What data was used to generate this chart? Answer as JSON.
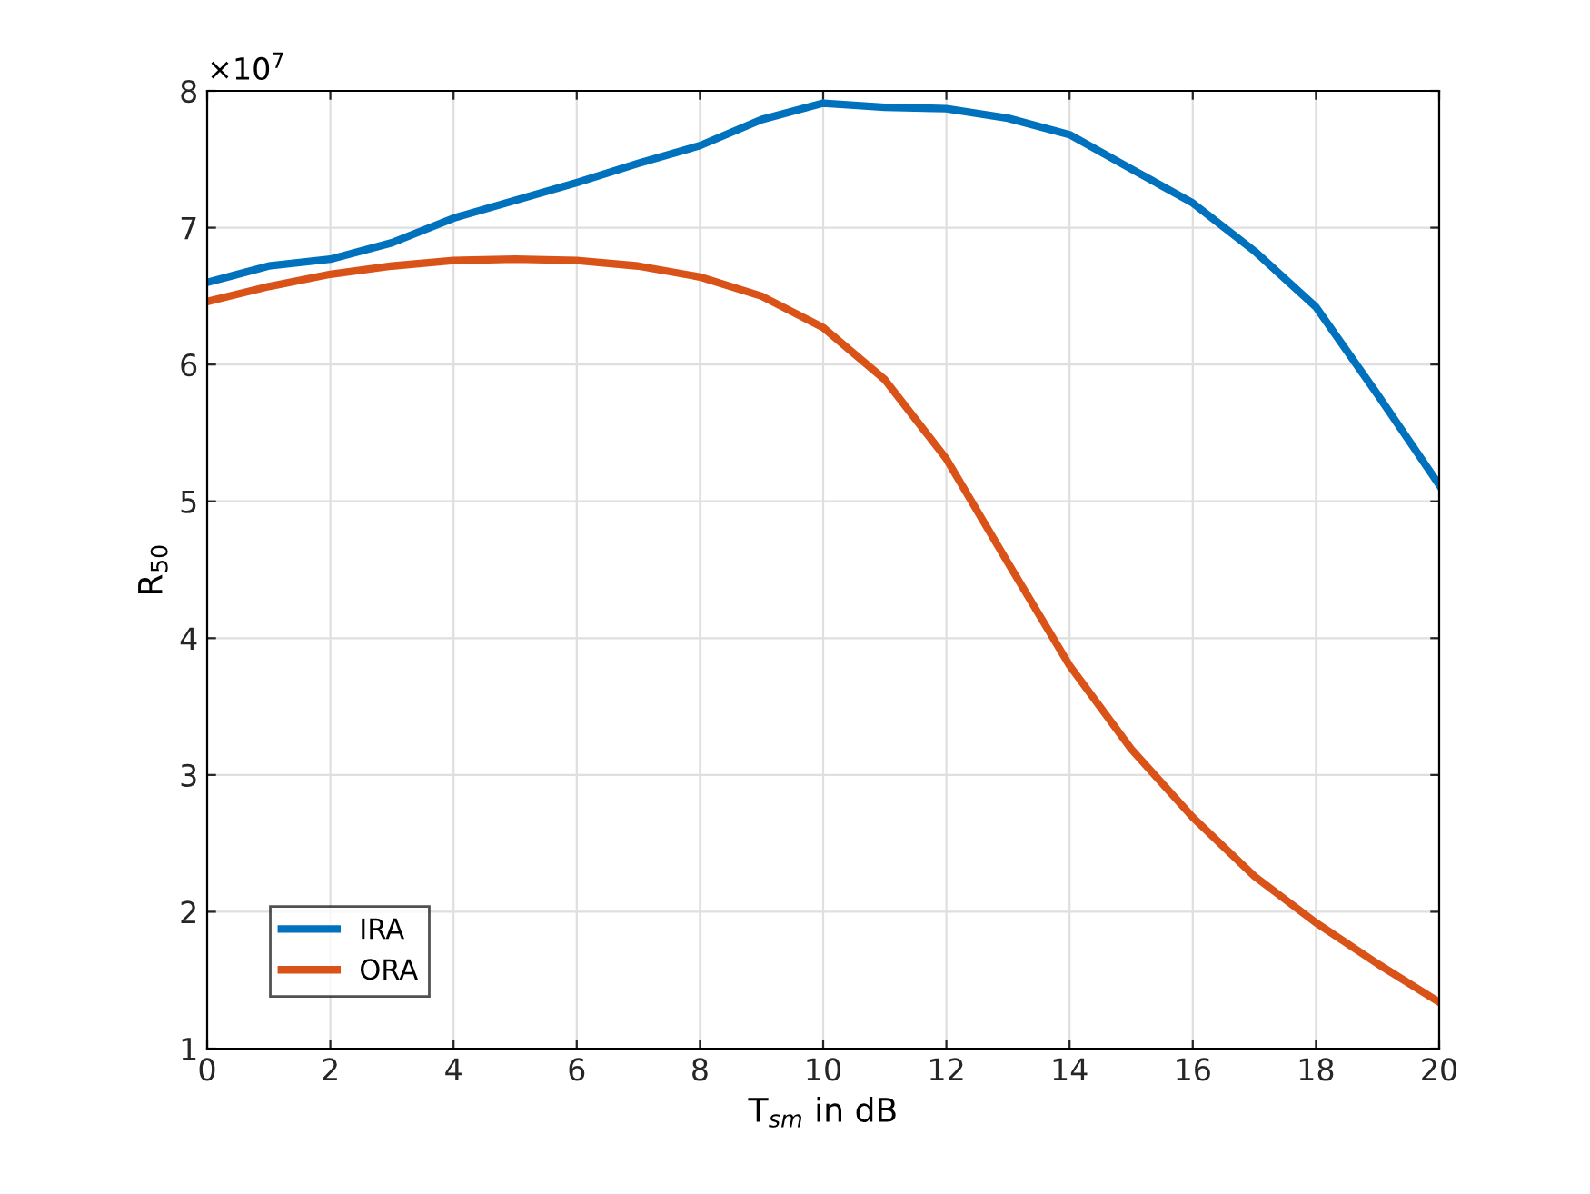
{
  "chart_data": {
    "type": "line",
    "xlabel": "T$_{sm}$ in dB",
    "ylabel": "R$_{50}$",
    "x": [
      0,
      1,
      2,
      3,
      4,
      5,
      6,
      7,
      8,
      9,
      10,
      11,
      12,
      13,
      14,
      15,
      16,
      17,
      18,
      19,
      20
    ],
    "series": [
      {
        "name": "IRA",
        "color": "#0072bd",
        "values": [
          6.6,
          6.72,
          6.77,
          6.89,
          7.07,
          7.2,
          7.33,
          7.47,
          7.6,
          7.79,
          7.91,
          7.88,
          7.87,
          7.8,
          7.68,
          7.43,
          7.18,
          6.83,
          6.42,
          5.78,
          5.12
        ]
      },
      {
        "name": "ORA",
        "color": "#d95319",
        "values": [
          6.46,
          6.57,
          6.66,
          6.72,
          6.76,
          6.77,
          6.76,
          6.72,
          6.64,
          6.5,
          6.27,
          5.89,
          5.31,
          4.55,
          3.8,
          3.19,
          2.69,
          2.26,
          1.92,
          1.62,
          1.34
        ]
      }
    ],
    "xlim": [
      0,
      20
    ],
    "xticks": [
      0,
      2,
      4,
      6,
      8,
      10,
      12,
      14,
      16,
      18,
      20
    ],
    "ylim": [
      1,
      8
    ],
    "yticks": [
      1,
      2,
      3,
      4,
      5,
      6,
      7,
      8
    ],
    "annotations": [
      "×10$^{7}$"
    ],
    "grid": true,
    "legend": "lower left",
    "line_style": "solid",
    "marker": "none"
  }
}
